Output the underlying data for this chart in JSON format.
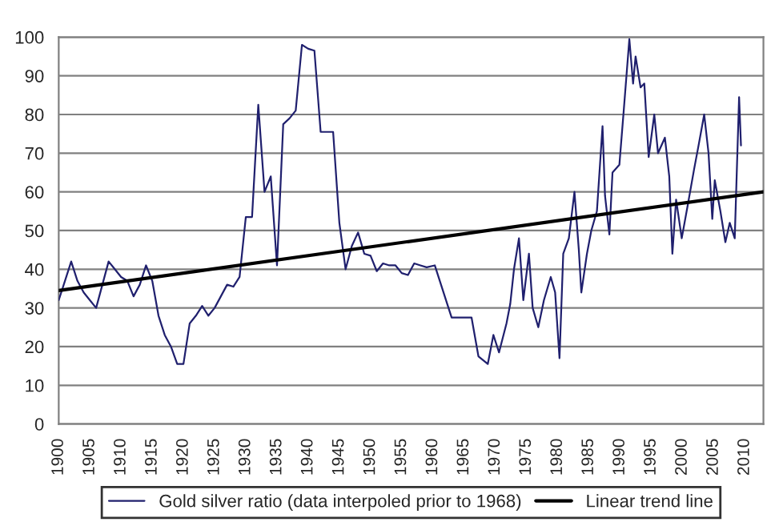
{
  "chart_data": {
    "type": "line",
    "xlim": [
      1900,
      2013
    ],
    "ylim": [
      0,
      100
    ],
    "xticks": [
      1900,
      1905,
      1910,
      1915,
      1920,
      1925,
      1930,
      1935,
      1940,
      1945,
      1950,
      1955,
      1960,
      1965,
      1970,
      1975,
      1980,
      1985,
      1990,
      1995,
      2000,
      2005,
      2010
    ],
    "yticks": [
      0,
      10,
      20,
      30,
      40,
      50,
      60,
      70,
      80,
      90,
      100
    ],
    "grid": "y",
    "legend": "bottom",
    "series": [
      {
        "name": "Gold silver ratio (data interpoled prior to 1968)",
        "color": "#20206e",
        "x": [
          1900,
          1901,
          1902,
          1903,
          1904,
          1905,
          1906,
          1907,
          1908,
          1909,
          1910,
          1911,
          1912,
          1913,
          1914,
          1915,
          1916,
          1917,
          1918,
          1919,
          1920,
          1921,
          1922,
          1923,
          1924,
          1925,
          1926,
          1927,
          1928,
          1929,
          1930,
          1931,
          1932,
          1933,
          1934,
          1935,
          1936,
          1937,
          1938,
          1939,
          1940,
          1941,
          1942,
          1943,
          1944,
          1945,
          1946,
          1947,
          1948,
          1949,
          1950,
          1951,
          1952,
          1953,
          1954,
          1955,
          1956,
          1957,
          1958,
          1959,
          1960.3,
          1963.0,
          1966.2,
          1967.3,
          1968.8,
          1969.7,
          1970.6,
          1971.8,
          1972.4,
          1973.0,
          1973.8,
          1974.5,
          1975.4,
          1976.0,
          1976.9,
          1977.8,
          1978.9,
          1979.6,
          1980.3,
          1980.9,
          1981.8,
          1982.7,
          1983.4,
          1983.8,
          1984.7,
          1985.4,
          1986.3,
          1987.2,
          1987.6,
          1988.3,
          1988.8,
          1989.9,
          1990.6,
          1991.5,
          1992.1,
          1992.5,
          1993.3,
          1993.9,
          1994.6,
          1995.5,
          1996.1,
          1997.2,
          1997.9,
          1998.4,
          1999.0,
          1999.9,
          2000.8,
          2001.9,
          2002.6,
          2003.5,
          2004.2,
          2004.8,
          2005.2,
          2006.1,
          2006.9,
          2007.6,
          2008.4,
          2009.1,
          2009.4
        ],
        "values": [
          32,
          37,
          42,
          37,
          34,
          32,
          30,
          36,
          42,
          40,
          38,
          37,
          33,
          36,
          41,
          37,
          28,
          23,
          20,
          15.5,
          15.5,
          26,
          28,
          30.5,
          28,
          30,
          33,
          36,
          35.5,
          38,
          53.5,
          53.5,
          82.5,
          60,
          64,
          41,
          77.5,
          79,
          81,
          98,
          97,
          96.5,
          75.5,
          75.5,
          75.5,
          52,
          40,
          46,
          49.5,
          44,
          43.5,
          39.5,
          41.5,
          41,
          41,
          39,
          38.5,
          41.5,
          41,
          40.5,
          41,
          27.5,
          27.5,
          17.5,
          15.5,
          23,
          18.5,
          26,
          31,
          40,
          48,
          32,
          44,
          30,
          25,
          32,
          38,
          34,
          17,
          44,
          48,
          60,
          45,
          34,
          44,
          50,
          55,
          77,
          59,
          49,
          65,
          67,
          81,
          99.5,
          88,
          95,
          87,
          88,
          69,
          80,
          70,
          74,
          64,
          44,
          58,
          48,
          56,
          66,
          72,
          80,
          70,
          53,
          63,
          55,
          47,
          52,
          48,
          84.5,
          72
        ]
      },
      {
        "name": "Linear trend line",
        "color": "#000000",
        "x": [
          1900,
          2013
        ],
        "values": [
          34.5,
          60
        ]
      }
    ]
  }
}
